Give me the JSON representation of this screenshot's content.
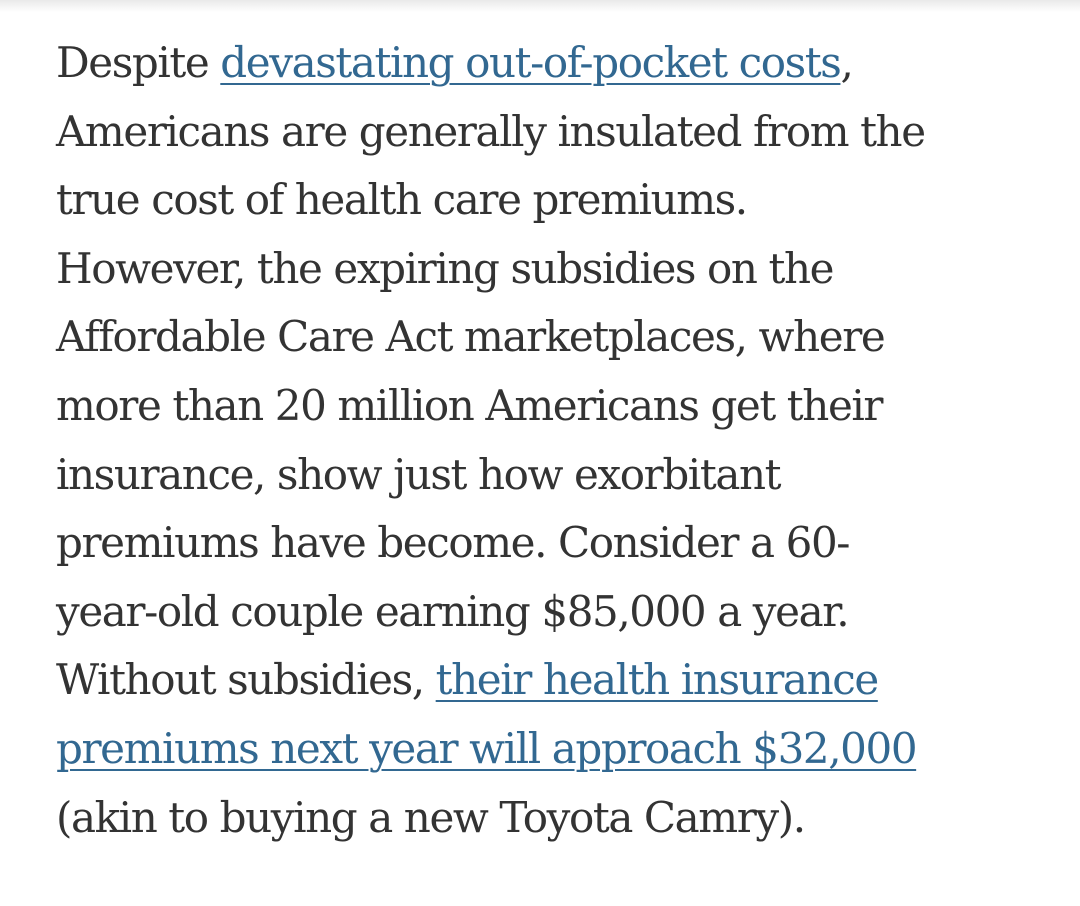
{
  "article": {
    "lines": [
      "Despite ",
      "devastating out-of-pocket costs",
      ",",
      "Americans are generally insulated from the",
      "true cost of health care premiums.",
      "However, the expiring subsidies on the",
      "Affordable Care Act marketplaces, where",
      "more than 20 million Americans get their",
      "insurance, show just how exorbitant",
      "premiums have become. Consider a 60-",
      "year-old couple earning $85,000 a year.",
      "Without subsidies, ",
      "their health insurance",
      "premiums next year will approach $32,000",
      "(akin to buying a new Toyota Camry)."
    ]
  },
  "colors": {
    "text": "#333333",
    "link": "#326891",
    "background": "#ffffff"
  }
}
